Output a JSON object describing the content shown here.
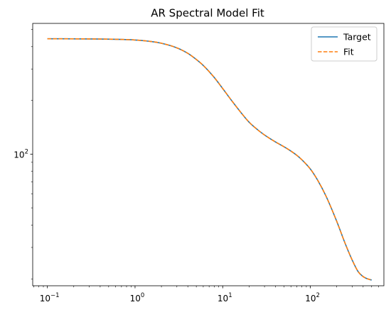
{
  "chart_data": {
    "type": "line",
    "title": "AR Spectral Model Fit",
    "xlabel": "",
    "ylabel": "",
    "xscale": "log",
    "yscale": "log",
    "xlim": [
      0.068,
      690
    ],
    "ylim": [
      18.3,
      540
    ],
    "grid": false,
    "legend_position": "top-right",
    "x_ticks": [
      {
        "value": 0.1,
        "base": "10",
        "exp": "−1"
      },
      {
        "value": 1,
        "base": "10",
        "exp": "0"
      },
      {
        "value": 10,
        "base": "10",
        "exp": "1"
      },
      {
        "value": 100,
        "base": "10",
        "exp": "2"
      }
    ],
    "y_ticks": [
      {
        "value": 100,
        "base": "10",
        "exp": "2"
      }
    ],
    "x": [
      0.1,
      0.3,
      0.6,
      1.0,
      1.5,
      2.0,
      3.0,
      4.0,
      5.0,
      6.0,
      8.0,
      10.0,
      13.0,
      16.0,
      20.0,
      25.0,
      30.0,
      40.0,
      50.0,
      60.0,
      70.0,
      80.0,
      100.0,
      120.0,
      150.0,
      200.0,
      250.0,
      300.0,
      350.0,
      400.0,
      450.0,
      500.0
    ],
    "series": [
      {
        "name": "Target",
        "color": "#1f77b4",
        "dash": "solid",
        "values": [
          443,
          442,
          440,
          436,
          428,
          418,
          394,
          367,
          339,
          314,
          269,
          233,
          196,
          172,
          151,
          137,
          128,
          117,
          110,
          104,
          98.5,
          93,
          82.5,
          72,
          58.5,
          42,
          31.5,
          25.5,
          22.0,
          20.6,
          20.0,
          19.7
        ]
      },
      {
        "name": "Fit",
        "color": "#ff7f0e",
        "dash": "dashed",
        "values": [
          443,
          442,
          440,
          436,
          428,
          418,
          394,
          367,
          339,
          314,
          269,
          233,
          196,
          172,
          151,
          137,
          128,
          117,
          110,
          104,
          98.5,
          93,
          82.5,
          72,
          58.5,
          42,
          31.5,
          25.5,
          22.0,
          20.6,
          20.0,
          19.7
        ]
      }
    ]
  }
}
